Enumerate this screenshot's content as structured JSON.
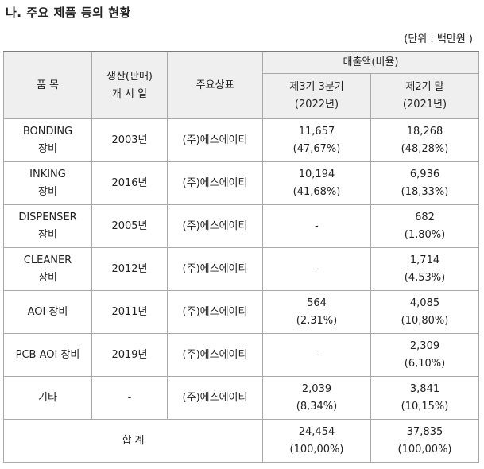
{
  "title": "나. 주요 제품 등의 현황",
  "unit": "(단위 : 백만원 )",
  "header": {
    "product": "품 목",
    "launch_line1": "생산(판매)",
    "launch_line2": "개 시 일",
    "brand": "주요상표",
    "sales": "매출액(비율)",
    "period1_line1": "제3기 3분기",
    "period1_line2": "(2022년)",
    "period2_line1": "제2기 말",
    "period2_line2": "(2021년)"
  },
  "rows": [
    {
      "name1": "BONDING",
      "name2": "장비",
      "year": "2003년",
      "brand": "(주)에스에이티",
      "p1a": "11,657",
      "p1b": "(47,67%)",
      "p2a": "18,268",
      "p2b": "(48,28%)"
    },
    {
      "name1": "INKING",
      "name2": "장비",
      "year": "2016년",
      "brand": "(주)에스에이티",
      "p1a": "10,194",
      "p1b": "(41,68%)",
      "p2a": "6,936",
      "p2b": "(18,33%)"
    },
    {
      "name1": "DISPENSER",
      "name2": "장비",
      "year": "2005년",
      "brand": "(주)에스에이티",
      "p1a": "-",
      "p1b": "",
      "p2a": "682",
      "p2b": "(1,80%)"
    },
    {
      "name1": "CLEANER",
      "name2": "장비",
      "year": "2012년",
      "brand": "(주)에스에이티",
      "p1a": "-",
      "p1b": "",
      "p2a": "1,714",
      "p2b": "(4,53%)"
    },
    {
      "name1": "AOI 장비",
      "name2": "",
      "year": "2011년",
      "brand": "(주)에스에이티",
      "p1a": "564",
      "p1b": "(2,31%)",
      "p2a": "4,085",
      "p2b": "(10,80%)"
    },
    {
      "name1": "PCB AOI 장비",
      "name2": "",
      "year": "2019년",
      "brand": "(주)에스에이티",
      "p1a": "-",
      "p1b": "",
      "p2a": "2,309",
      "p2b": "(6,10%)"
    },
    {
      "name1": "기타",
      "name2": "",
      "year": "-",
      "brand": "(주)에스에이티",
      "p1a": "2,039",
      "p1b": "(8,34%)",
      "p2a": "3,841",
      "p2b": "(10,15%)"
    }
  ],
  "total": {
    "label": "합 계",
    "p1a": "24,454",
    "p1b": "(100,00%)",
    "p2a": "37,835",
    "p2b": "(100,00%)"
  }
}
